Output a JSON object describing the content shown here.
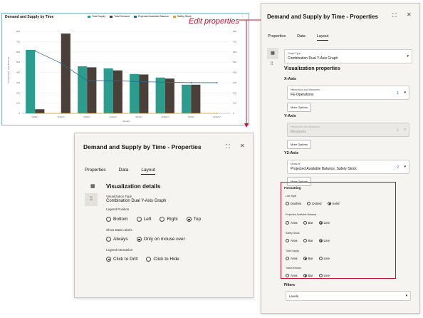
{
  "annotation": {
    "label": "Edit properties"
  },
  "chart_data": {
    "type": "bar",
    "title": "Demand and Supply by Time",
    "categories": [
      "1/29/17",
      "2/26/17",
      "3/26/17",
      "4/23/17",
      "5/21/17",
      "6/18/17",
      "7/16/17",
      "8/13/17"
    ],
    "series": [
      {
        "name": "Total Supply",
        "kind": "bar",
        "color": "#2a9d8f",
        "values": [
          620,
          0,
          460,
          440,
          385,
          350,
          280,
          0
        ]
      },
      {
        "name": "Total Demand",
        "kind": "bar",
        "color": "#4a3f39",
        "values": [
          40,
          780,
          450,
          420,
          380,
          340,
          280,
          0
        ]
      },
      {
        "name": "Projected Available Balance",
        "kind": "line",
        "color": "#2b6b8a",
        "values": [
          610,
          490,
          320,
          320,
          310,
          305,
          300,
          300
        ]
      },
      {
        "name": "Safety Stock",
        "kind": "line",
        "color": "#e0a030",
        "values": [
          0,
          0,
          0,
          0,
          0,
          0,
          0,
          0
        ]
      }
    ],
    "ylabel": "Total Supply, Total Demand",
    "xlabel": "(Month)",
    "y_ticks": [
      "0",
      "100",
      "200",
      "300",
      "400",
      "500",
      "600",
      "700",
      "800"
    ],
    "ylim": [
      0,
      850
    ],
    "legend": "top"
  },
  "big_panel": {
    "title": "Demand and Supply by Time - Properties",
    "tabs": [
      "Properties",
      "Data",
      "Layout"
    ],
    "graph_type_label": "Graph Type",
    "graph_type_value": "Combination Dual Y-Axis Graph",
    "section_title": "Visualization properties",
    "x_axis": {
      "heading": "X-Axis",
      "label": "Hierarchies and Measures",
      "value": "FE-Operations",
      "count": "1",
      "button": "More Options"
    },
    "y_axis": {
      "heading": "Y-Axis",
      "label": "Hierarchies and Measures",
      "value": "Measures",
      "count": "1",
      "button": "More Options"
    },
    "y2_axis": {
      "heading": "Y2-Axis",
      "label": "Measure",
      "value": "Projected Available Balance, Safety Stock",
      "count": "2",
      "button": "More Options"
    },
    "formatting": {
      "heading": "Formatting",
      "line_style": {
        "label": "Line Style",
        "options": [
          "Dashes",
          "Dotted",
          "Solid"
        ],
        "selected": 2
      },
      "pab": {
        "label": "Projected Available Balance",
        "options": [
          "Area",
          "Bar",
          "Line"
        ],
        "selected": 2
      },
      "safety": {
        "label": "Safety Stock",
        "options": [
          "Area",
          "Bar",
          "Line"
        ],
        "selected": 2
      },
      "supply": {
        "label": "Total Supply",
        "options": [
          "Area",
          "Bar",
          "Line"
        ],
        "selected": 1
      },
      "demand": {
        "label": "Total Demand",
        "options": [
          "Area",
          "Bar",
          "Line"
        ],
        "selected": 1
      }
    },
    "filters": {
      "heading": "Filters",
      "value": "Levels"
    }
  },
  "small_panel": {
    "title": "Demand and Supply by Time - Properties",
    "tabs": [
      "Properties",
      "Data",
      "Layout"
    ],
    "section_title": "Visualization details",
    "viz_type_label": "Visualization Type",
    "viz_type_value": "Combination Dual Y-Axis Graph",
    "legend_position": {
      "label": "Legend Position",
      "options": [
        "Bottom",
        "Left",
        "Right",
        "Top"
      ],
      "selected": 3
    },
    "show_labels": {
      "label": "Show Data Labels",
      "options": [
        "Always",
        "Only on mouse over"
      ],
      "selected": 1
    },
    "legend_interaction": {
      "label": "Legend Interaction",
      "options": [
        "Click to Drill",
        "Click to Hide"
      ],
      "selected": 0
    }
  },
  "icons": {
    "expand": "expand-icon",
    "close": "close-icon",
    "chevron": "chevron-down-icon"
  }
}
